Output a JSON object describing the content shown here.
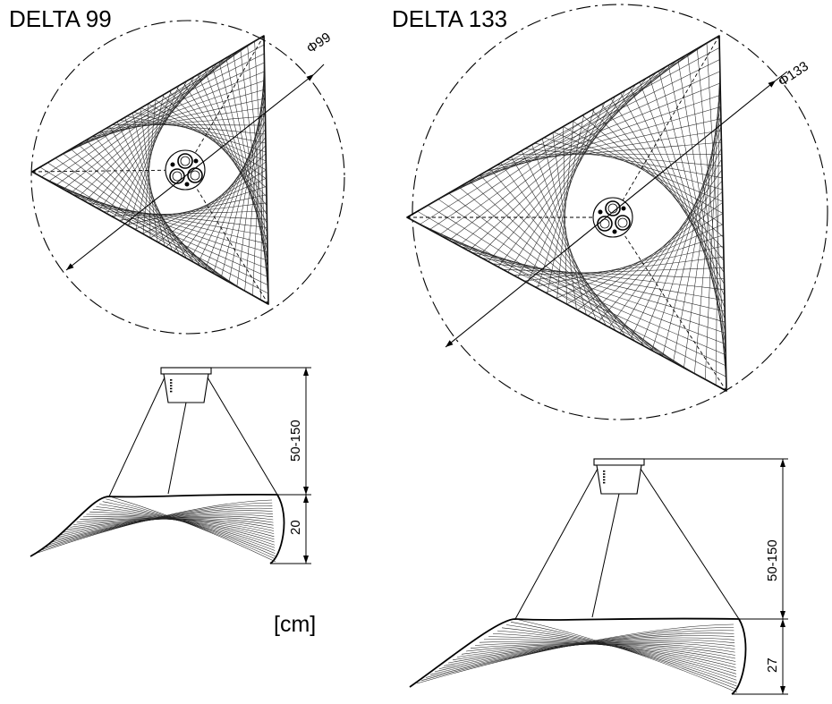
{
  "titles": {
    "left": "DELTA 99",
    "right": "DELTA 133"
  },
  "units": "[cm]",
  "delta99": {
    "diameter_label": "Φ99",
    "suspension_label": "50-150",
    "height_label": "20"
  },
  "delta133": {
    "diameter_label": "Φ133",
    "suspension_label": "50-150",
    "height_label": "27"
  }
}
